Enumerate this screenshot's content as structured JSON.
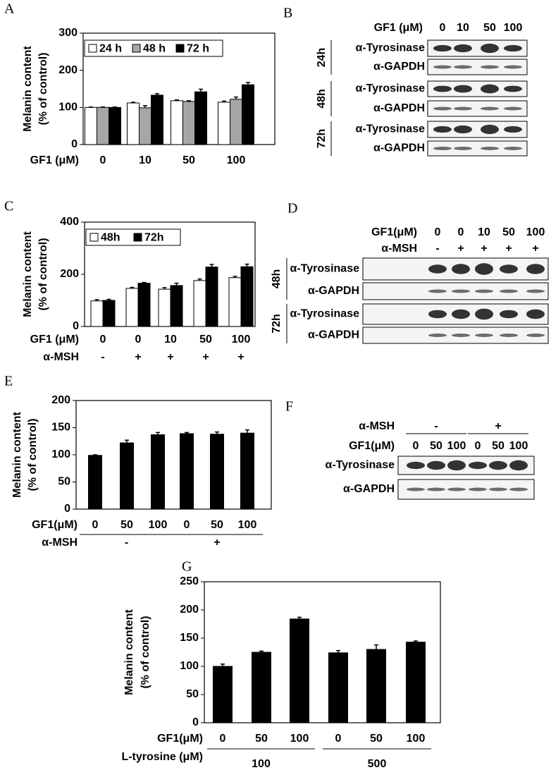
{
  "chart_data": [
    {
      "panel": "A",
      "type": "bar",
      "ylabel": [
        "Melanin content",
        "(% of control)"
      ],
      "xlabel": "GF1 (μM)",
      "categories": [
        "0",
        "10",
        "50",
        "100"
      ],
      "series": [
        {
          "name": "24 h",
          "color": "#ffffff",
          "values": [
            100,
            112,
            118,
            114
          ],
          "errors": [
            1,
            2,
            2,
            3
          ]
        },
        {
          "name": "48 h",
          "color": "#a6a6a6",
          "values": [
            100,
            99,
            116,
            122
          ],
          "errors": [
            1,
            6,
            2,
            6
          ]
        },
        {
          "name": "72 h",
          "color": "#000000",
          "values": [
            100,
            133,
            142,
            161
          ],
          "errors": [
            1,
            4,
            7,
            6
          ]
        }
      ],
      "ylim": [
        0,
        300
      ],
      "yticks": [
        0,
        100,
        200,
        300
      ],
      "legend": "top-left"
    },
    {
      "panel": "C",
      "type": "bar",
      "ylabel": [
        "Melanin content",
        "(% of control)"
      ],
      "xlabel": "GF1 (μM)",
      "categories": [
        "0",
        "0",
        "10",
        "50",
        "100"
      ],
      "x_rows": [
        {
          "label": "α-MSH",
          "values": [
            "-",
            "+",
            "+",
            "+",
            "+"
          ]
        }
      ],
      "series": [
        {
          "name": "48h",
          "color": "#ffffff",
          "values": [
            98,
            146,
            143,
            176,
            187
          ],
          "errors": [
            5,
            4,
            6,
            6,
            5
          ]
        },
        {
          "name": "72h",
          "color": "#000000",
          "values": [
            100,
            166,
            157,
            228,
            229
          ],
          "errors": [
            4,
            3,
            9,
            10,
            10
          ]
        }
      ],
      "ylim": [
        0,
        400
      ],
      "yticks": [
        0,
        200,
        400
      ],
      "legend": "top-left"
    },
    {
      "panel": "E",
      "type": "bar",
      "ylabel": [
        "Melanin content",
        "(% of control)"
      ],
      "xlabel": "GF1(μM)",
      "categories": [
        "0",
        "50",
        "100",
        "0",
        "50",
        "100"
      ],
      "group_label": "α-MSH",
      "groups": [
        "-",
        "+"
      ],
      "values": [
        99,
        122,
        137,
        139,
        138,
        140
      ],
      "errors": [
        1,
        5,
        4,
        2,
        4,
        6
      ],
      "color": "#000000",
      "ylim": [
        0,
        200
      ],
      "yticks": [
        0,
        50,
        100,
        150,
        200
      ]
    },
    {
      "panel": "G",
      "type": "bar",
      "ylabel": [
        "Melanin content",
        "(% of control)"
      ],
      "xlabel": "GF1(μM)",
      "categories": [
        "0",
        "50",
        "100",
        "0",
        "50",
        "100"
      ],
      "group_label": "L-tyrosine (μM)",
      "groups": [
        "100",
        "500"
      ],
      "values": [
        100,
        125,
        184,
        124,
        130,
        143
      ],
      "errors": [
        4,
        2,
        3,
        4,
        8,
        2
      ],
      "color": "#000000",
      "ylim": [
        0,
        250
      ],
      "yticks": [
        0,
        50,
        100,
        150,
        200,
        250
      ]
    }
  ],
  "blots": [
    {
      "panel": "B",
      "header_rows": [
        {
          "label": "GF1 (μM)",
          "lanes": [
            "0",
            "10",
            "50",
            "100"
          ]
        }
      ],
      "groups": [
        {
          "name": "24h",
          "rows": [
            "α-Tyrosinase",
            "α-GAPDH"
          ]
        },
        {
          "name": "48h",
          "rows": [
            "α-Tyrosinase",
            "α-GAPDH"
          ]
        },
        {
          "name": "72h",
          "rows": [
            "α-Tyrosinase",
            "α-GAPDH"
          ]
        }
      ]
    },
    {
      "panel": "D",
      "header_rows": [
        {
          "label": "GF1(μM)",
          "lanes": [
            "0",
            "0",
            "10",
            "50",
            "100"
          ]
        },
        {
          "label": "α-MSH",
          "lanes": [
            "-",
            "+",
            "+",
            "+",
            "+"
          ]
        }
      ],
      "groups": [
        {
          "name": "48h",
          "rows": [
            "α-Tyrosinase",
            "α-GAPDH"
          ]
        },
        {
          "name": "72h",
          "rows": [
            "α-Tyrosinase",
            "α-GAPDH"
          ]
        }
      ]
    },
    {
      "panel": "F",
      "header_rows": [
        {
          "label": "α-MSH",
          "spans": [
            "-",
            "+"
          ]
        },
        {
          "label": "GF1(μM)",
          "lanes": [
            "0",
            "50",
            "100",
            "0",
            "50",
            "100"
          ]
        }
      ],
      "rows": [
        "α-Tyrosinase",
        "α-GAPDH"
      ]
    }
  ]
}
